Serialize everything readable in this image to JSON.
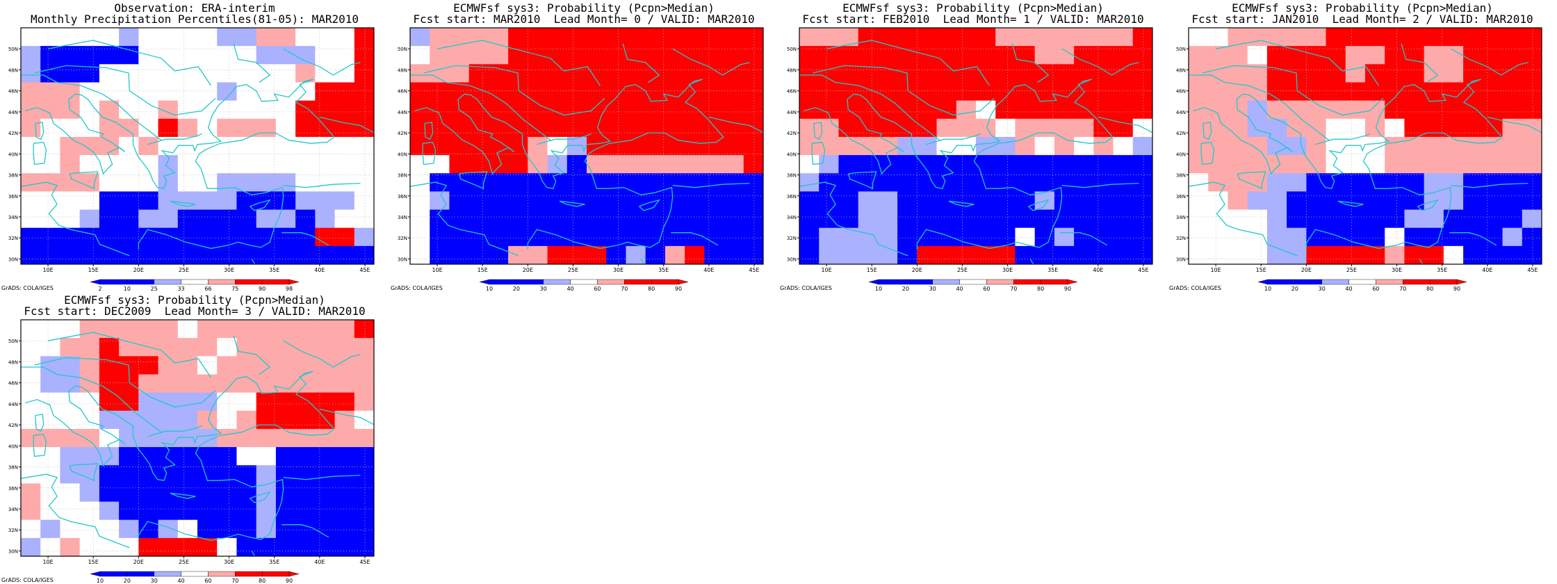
{
  "panels": [
    {
      "title_line1": "Observation: ERA-interim",
      "title_line2": "Monthly Precipitation Percentiles(81-05): MAR2010",
      "legend_labels": [
        "2",
        "10",
        "25",
        "33",
        "66",
        "75",
        "90",
        "98"
      ],
      "grid": [
        "WWWWWLWWWWLLMMWWWR",
        "LBBBBBWWWWWWLLLWWR",
        "LBBBWWWWWWWWWWMWWR",
        "MMMWWWWWWWLWWWWRRR",
        "MMMWMWWMWWWWWWRRRR",
        "MWWWMMWRMWMMMWRRRR",
        "WWMMMWMWWWWWWWWWWW",
        "WWMWWWWLWWWWWWWWWW",
        "MMMMWWWLWWLLLLWWWW",
        "WWWWBBBLLLLBBBLLLW",
        "WWWLBBLLBBBBLLBLWW",
        "BBBBBBBBBBBBBBBRRL",
        "BBBBBBBBBBBBBBBBBB"
      ]
    },
    {
      "title_line1": "ECMWFsf sys3: Probability (Pcpn>Median)",
      "title_line2": "Fcst start: MAR2010  Lead Month= 0 / VALID: MAR2010",
      "legend_labels": [
        "10",
        "20",
        "30",
        "40",
        "60",
        "70",
        "80",
        "90"
      ],
      "grid": [
        "LMMMMRRRRRRRRRRRRR",
        "WMMMMRRRRRRRRRRRRR",
        "MMMRRRRRRRRRRRRRRR",
        "RRRRRRRRRRRRRRRRRR",
        "RRRRRRRRRRRRRRRRRR",
        "RRRRRRRRRRRRRRRRRR",
        "RRRRRRMWLRRRRRRRRR",
        "WWRRRRMLBMMMMMMMMR",
        "WBBBBBBBBBBBBBBBBB",
        "WLBBBBBBBBBBBBBBBB",
        "WBBBBBBBBBBBBBBBBB",
        "WBBBBBBBBBBBBBBBBB",
        "WBBBBMMRRRBLBMRBBB"
      ]
    },
    {
      "title_line1": "ECMWFsf sys3: Probability (Pcpn>Median)",
      "title_line2": "Fcst start: FEB2010  Lead Month= 1 / VALID: MAR2010",
      "legend_labels": [
        "10",
        "20",
        "30",
        "40",
        "60",
        "70",
        "80",
        "90"
      ],
      "grid": [
        "MMMRRRRRRRMMMMMMMR",
        "RRRRRRRRRRRRMMRRRR",
        "RRRRRRRRRRRRRRRRRR",
        "RRRRRRRRRRRRRRRRRR",
        "RRRRRRRRMWRRRRRRRR",
        "MMRRRRRMMMWMMMMRRW",
        "MMMMMLLWWLLMWMWMWL",
        "WLBBBBBBBBBBBBBBBB",
        "LBBBBBBBBBBBBBBBBB",
        "BBBLLBBBBBBBLBBBBB",
        "BBBLLBBBBBBBBBBBBB",
        "BLLLLBBBBBBWBLBBBB",
        "BLLLLBRRRRRBBBBBBB"
      ]
    },
    {
      "title_line1": "ECMWFsf sys3: Probability (Pcpn>Median)",
      "title_line2": "Fcst start: JAN2010  Lead Month= 2 / VALID: MAR2010",
      "legend_labels": [
        "10",
        "20",
        "30",
        "40",
        "60",
        "70",
        "80",
        "90"
      ],
      "grid": [
        "WWMMMMMRRRRRRRRRRR",
        "MMMWRRRRMMRRMMRRRR",
        "MMMMRRRRMRRRMMRRRR",
        "MMMMRRRRRRRRRRRRRR",
        "MMMLMMMMMMRRRRRRRR",
        "MMMLLMMWWMWRRRRRMM",
        "MMMMLLMWWWMMMMMMMM",
        "MMMMMMMWWWMMMMMMMM",
        "WMMMLLBBBBBBLLBBBB",
        "WWMLLBBBBBBBLLBBBB",
        "WWWWLBBBBBBLLBBBBL",
        "WWWWLLBBBBWBBBBBLB",
        "WWWWLLRRRRMRRWBBBB"
      ]
    },
    {
      "title_line1": "ECMWFsf sys3: Probability (Pcpn>Median)",
      "title_line2": "Fcst start: DEC2009  Lead Month= 3 / VALID: MAR2010",
      "legend_labels": [
        "10",
        "20",
        "30",
        "40",
        "60",
        "70",
        "80",
        "90"
      ],
      "grid": [
        "WWWMMMMMWMMMMMMMMR",
        "WWMMRMMMMMWMMMMMMM",
        "WLLMRRRMMWMMMMMMMM",
        "WLLMRRMMMMMMMMMMMM",
        "WWWWRRLLLLWWRRRRRM",
        "WWWWLLLLLMWMRRRRMW",
        "MMMMWLLLLLMMMMMMMM",
        "WWLLLBBBBBBWWBBBBB",
        "WWLLBBBBBBBBLBBBBB",
        "MWWLBBBBBBBBLBBBBB",
        "MWWWLBBBBBBBLBBBBB",
        "WLWWWLBLWBBBLBBBBB",
        "LWMWWWRRRRWBBBBBBB"
      ]
    }
  ],
  "axes": {
    "lon_labels": [
      "10E",
      "15E",
      "20E",
      "25E",
      "30E",
      "35E",
      "40E",
      "45E"
    ],
    "lat_labels": [
      "30N",
      "32N",
      "34N",
      "36N",
      "38N",
      "40N",
      "42N",
      "44N",
      "46N",
      "48N",
      "50N"
    ]
  },
  "credit": "GrADS: COLA/IGES",
  "colors": {
    "deep_blue": "#0000ff",
    "light_blue": "#aab1ff",
    "neutral": "#ffffff",
    "light_red": "#ffaaaa",
    "deep_red": "#ff0000",
    "coastline": "#20c8c8"
  }
}
